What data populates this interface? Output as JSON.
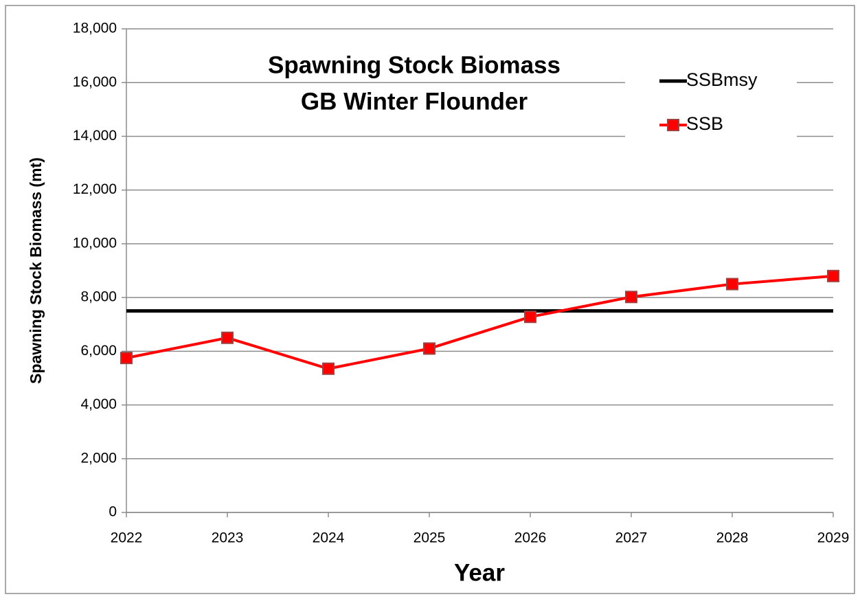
{
  "chart_data": {
    "type": "line",
    "title": "Spawning Stock Biomass",
    "subtitle": "GB Winter Flounder",
    "x_label": "Year",
    "y_label": "Spawning Stock Biomass (mt)",
    "x": [
      2022,
      2023,
      2024,
      2025,
      2026,
      2027,
      2028,
      2029
    ],
    "xlim": [
      2022,
      2029
    ],
    "xticks": [
      2022,
      2023,
      2024,
      2025,
      2026,
      2027,
      2028,
      2029
    ],
    "ylim": [
      0,
      18000
    ],
    "yticks": [
      0,
      {
        "value": 2000,
        "label": "2,000"
      },
      {
        "value": 4000,
        "label": "4,000"
      },
      {
        "value": 6000,
        "label": "6,000"
      },
      {
        "value": 8000,
        "label": "8,000"
      },
      {
        "value": 10000,
        "label": "10,000"
      },
      {
        "value": 12000,
        "label": "12,000"
      },
      {
        "value": 14000,
        "label": "14,000"
      },
      {
        "value": 16000,
        "label": "16,000"
      },
      {
        "value": 18000,
        "label": "18,000"
      }
    ],
    "grid": true,
    "legend": "top-right",
    "series": [
      {
        "name": "SSBmsy",
        "color": "#000000",
        "marker": "none",
        "values": [
          7500,
          7500,
          7500,
          7500,
          7500,
          7500,
          7500,
          7500
        ]
      },
      {
        "name": "SSB",
        "color": "#ff0000",
        "marker": "square",
        "values": [
          5750,
          6500,
          5350,
          6100,
          7280,
          8020,
          8500,
          8800
        ]
      }
    ]
  }
}
